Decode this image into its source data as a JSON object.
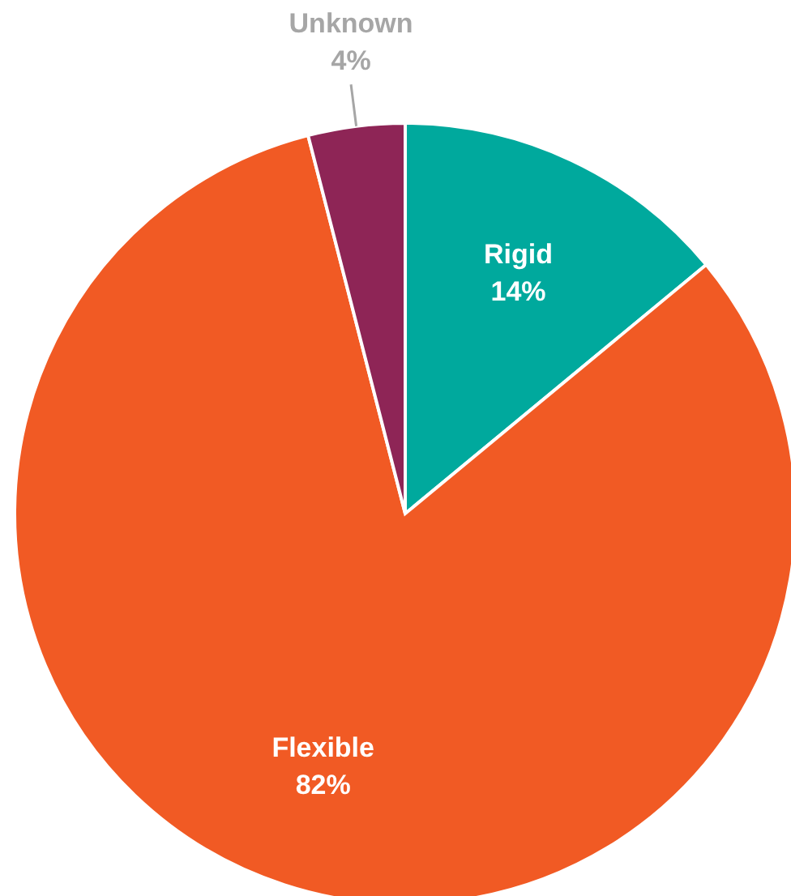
{
  "chart_data": {
    "type": "pie",
    "categories": [
      "Rigid",
      "Flexible",
      "Unknown"
    ],
    "values": [
      14,
      82,
      4
    ],
    "colors": [
      "#00a99d",
      "#f15a24",
      "#8e2556"
    ],
    "value_labels": [
      "14%",
      "82%",
      "4%"
    ]
  }
}
